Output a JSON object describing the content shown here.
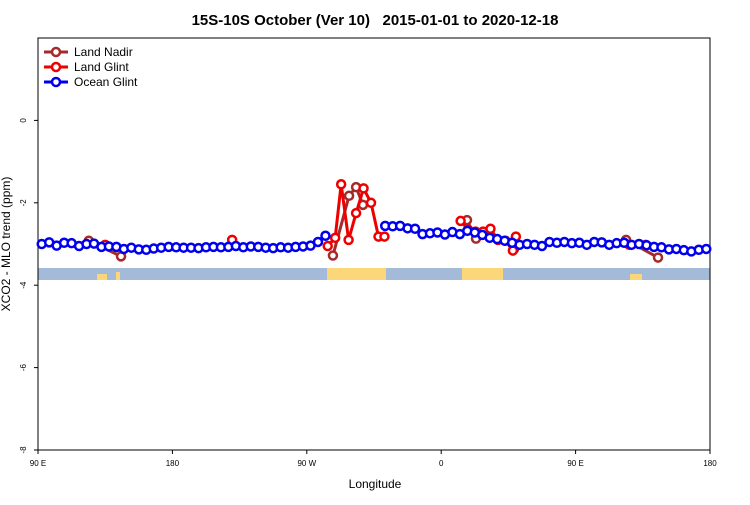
{
  "chart_data": {
    "type": "line",
    "title": "15S-10S October (Ver 10)   2015-01-01 to 2020-12-18",
    "xlabel": "Longitude",
    "ylabel": "XCO2 - MLO trend (ppm)",
    "xlim": [
      90,
      540
    ],
    "ylim": [
      -8,
      2
    ],
    "xticks": [
      {
        "value": 90,
        "label": "90 E"
      },
      180,
      {
        "value": 270,
        "label": "90 W"
      },
      {
        "value": 360,
        "label": "0"
      },
      {
        "value": 450,
        "label": "90 E"
      },
      {
        "value": 540,
        "label": "180"
      }
    ],
    "yticks": [
      -8,
      -6,
      -4,
      -2,
      0
    ],
    "legend": "top-left",
    "series": [
      {
        "name": "Land Nadir",
        "color": "#a52a2a",
        "x": [
          124,
          145.6,
          200,
          287.5,
          298.3,
          303,
          307.6,
          340,
          377.3,
          383.3,
          395,
          408.8,
          450,
          483.8,
          505.2
        ],
        "values": [
          -2.92,
          -3.3,
          null,
          -3.28,
          -1.83,
          -1.62,
          -2.05,
          null,
          -2.42,
          -2.87,
          null,
          -3.12,
          null,
          -2.9,
          -3.33
        ]
      },
      {
        "name": "Land Glint",
        "color": "#ee0000",
        "x": [
          135,
          180,
          220,
          255,
          284,
          289,
          293,
          298,
          303,
          308,
          313,
          318,
          322,
          348,
          373,
          378,
          383,
          388,
          393,
          398,
          403,
          408,
          410,
          450,
          486,
          491,
          497
        ],
        "values": [
          -3.02,
          null,
          -2.9,
          null,
          -3.05,
          -2.85,
          -1.55,
          -2.9,
          -2.25,
          -1.65,
          -2.0,
          -2.82,
          -2.82,
          null,
          -2.44,
          -2.65,
          -2.7,
          -2.7,
          -2.63,
          -2.9,
          -2.92,
          -3.16,
          -2.82,
          null,
          -3.02,
          null,
          -3.02
        ]
      },
      {
        "name": "Ocean Glint",
        "color": "#0000ee",
        "x": [
          92.5,
          97.5,
          102.5,
          107.5,
          112.5,
          117.5,
          122.5,
          127.5,
          132.5,
          137.5,
          142.5,
          147.5,
          152.5,
          157.5,
          162.5,
          167.5,
          172.5,
          177.5,
          182.5,
          187.5,
          192.5,
          197.5,
          202.5,
          207.5,
          212.5,
          217.5,
          222.5,
          227.5,
          232.5,
          237.5,
          242.5,
          247.5,
          252.5,
          257.5,
          262.5,
          267.5,
          272.5,
          277.5,
          282.5,
          302.5,
          322.5,
          327.5,
          332.5,
          337.5,
          342.5,
          347.5,
          352.5,
          357.5,
          362.5,
          367.5,
          372.5,
          377.5,
          382.5,
          387.5,
          392.5,
          397.5,
          402.5,
          407.5,
          412.5,
          417.5,
          422.5,
          427.5,
          432.5,
          437.5,
          442.5,
          447.5,
          452.5,
          457.5,
          462.5,
          467.5,
          472.5,
          477.5,
          482.5,
          487.5,
          492.5,
          497.5,
          502.5,
          507.5,
          512.5,
          517.5,
          522.5,
          527.5,
          532.5,
          537.5
        ],
        "values": [
          -3.0,
          -2.96,
          -3.04,
          -2.97,
          -2.98,
          -3.05,
          -3.0,
          -2.99,
          -3.07,
          -3.06,
          -3.07,
          -3.12,
          -3.09,
          -3.13,
          -3.14,
          -3.11,
          -3.09,
          -3.07,
          -3.08,
          -3.09,
          -3.09,
          -3.1,
          -3.08,
          -3.07,
          -3.08,
          -3.07,
          -3.05,
          -3.08,
          -3.06,
          -3.07,
          -3.09,
          -3.1,
          -3.08,
          -3.09,
          -3.07,
          -3.06,
          -3.04,
          -2.95,
          -2.8,
          null,
          -2.56,
          -2.57,
          -2.56,
          -2.62,
          -2.63,
          -2.76,
          -2.74,
          -2.72,
          -2.77,
          -2.71,
          -2.76,
          -2.68,
          -2.72,
          -2.78,
          -2.85,
          -2.88,
          -2.92,
          -2.97,
          -3.02,
          -3.0,
          -3.02,
          -3.05,
          -2.95,
          -2.97,
          -2.95,
          -2.98,
          -2.97,
          -3.02,
          -2.95,
          -2.96,
          -3.02,
          -2.98,
          -2.97,
          -3.02,
          -3.0,
          -3.03,
          -3.07,
          -3.08,
          -3.13,
          -3.12,
          -3.15,
          -3.18,
          -3.14,
          -3.12
        ]
      }
    ]
  }
}
